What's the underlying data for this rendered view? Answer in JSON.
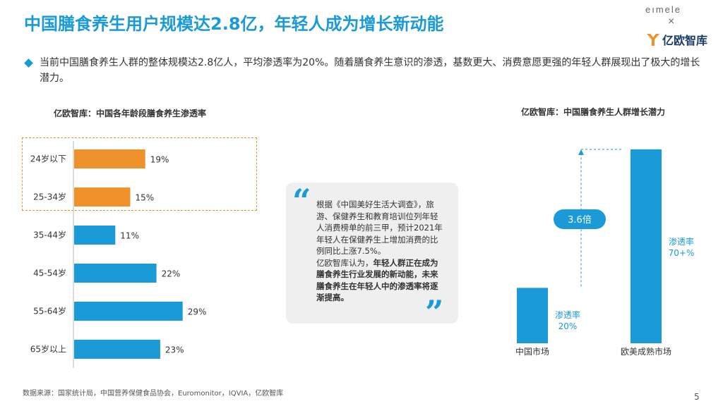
{
  "page": {
    "title": "中国膳食养生用户规模达2.8亿，年轻人成为增长新动能",
    "bullet": "当前中国膳食养生人群的整体规模达2.8亿人，平均渗透率为20%。随着膳食养生意识的渗透，基数更大、消费意愿更强的年轻人群展现出了极大的增长潜力。",
    "source": "数据来源：国家统计局，中国营养保健食品协会，Euromonitor，IQVIA，亿欧智库",
    "page_number": "5"
  },
  "logo": {
    "brand1": "eımele",
    "separator": "×",
    "brand2": "亿欧智库"
  },
  "quote": {
    "open_mark": "“",
    "close_mark": "”",
    "text_normal_1": "根据《中国美好生活大调查》，旅游、保健养生和教育培训位列年轻人消费榜单的前三甲，预计2021年年轻人在保健养生上增加消费的比例同比上涨7.5%。",
    "text_normal_2": "亿欧智库认为，",
    "text_bold": "年轻人群正在成为膳食养生行业发展的新动能，未来膳食养生在年轻人中的渗透率将逐渐提高。"
  },
  "chart_data": [
    {
      "type": "bar",
      "orientation": "horizontal",
      "title": "亿欧智库：中国各年龄段膳食养生渗透率",
      "categories": [
        "24岁以下",
        "25-34岁",
        "35-44岁",
        "45-54岁",
        "55-64岁",
        "65岁以上"
      ],
      "values": [
        19,
        15,
        11,
        22,
        29,
        23
      ],
      "labels": [
        "19%",
        "15%",
        "11%",
        "22%",
        "29%",
        "23%"
      ],
      "unit": "%",
      "highlight": [
        true,
        true,
        false,
        false,
        false,
        false
      ],
      "colors": {
        "highlight": "#f0922c",
        "normal": "#1a9ad6"
      },
      "xlim": [
        0,
        40
      ]
    },
    {
      "type": "bar",
      "title": "亿欧智库：中国膳食养生人群增长潜力",
      "categories": [
        "中国市场",
        "欧美成熟市场"
      ],
      "values": [
        20,
        70
      ],
      "labels": [
        "渗透率\n20%",
        "渗透率\n70+%"
      ],
      "annotation": "3.6倍",
      "color": "#1a9ad6"
    }
  ]
}
